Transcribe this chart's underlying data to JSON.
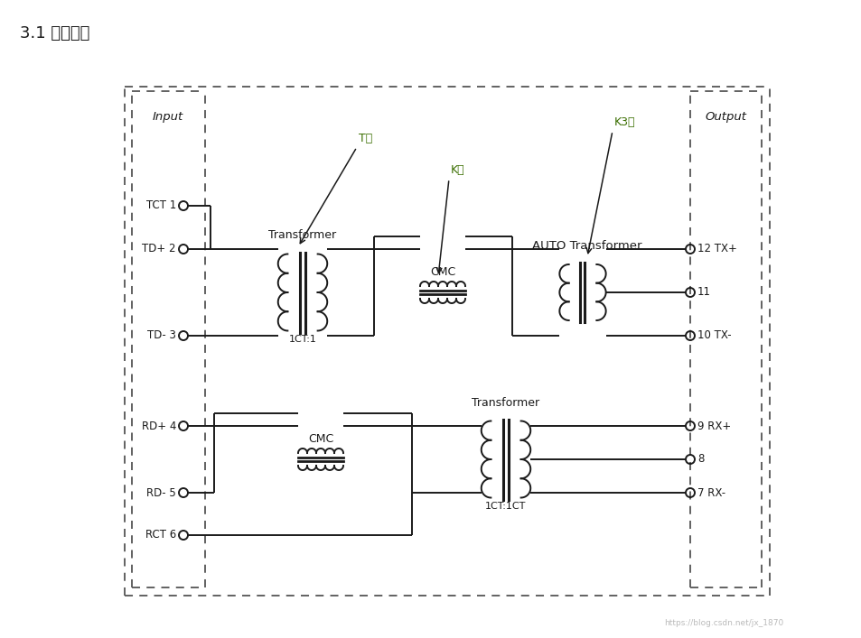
{
  "title": "3.1 内部结构",
  "bg_color": "#ffffff",
  "line_color": "#1a1a1a",
  "input_labels": [
    "TCT 1",
    "TD+ 2",
    "TD- 3",
    "RD+ 4",
    "RD- 5",
    "RCT 6"
  ],
  "output_labels": [
    "12 TX+",
    "11",
    "10 TX-",
    "9 RX+",
    "8",
    "7 RX-"
  ],
  "transformer_top_label": "Transformer",
  "transformer_bot_label": "Transformer",
  "auto_transformer_label": "AUTO Transformer",
  "cmc_top_label": "CMC",
  "cmc_bot_label": "CMC",
  "ratio_top": "1CT:1",
  "ratio_bot": "1CT:1CT",
  "input_box_label": "Input",
  "output_box_label": "Output",
  "annotation_T": "T件",
  "annotation_K": "K件",
  "annotation_K3": "K3件",
  "watermark": "https://blog.csdn.net/jx_1870"
}
